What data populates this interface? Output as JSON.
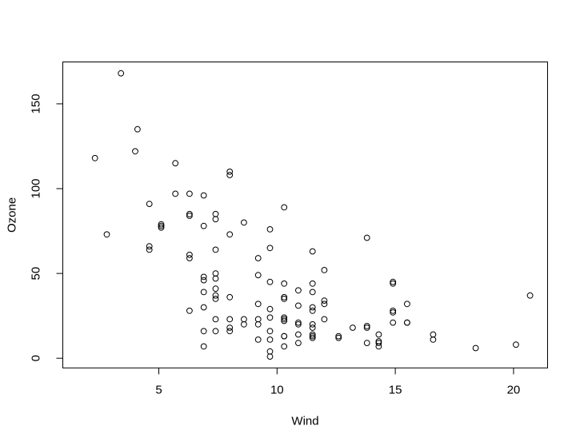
{
  "chart_data": {
    "type": "scatter",
    "title": "",
    "xlabel": "Wind",
    "ylabel": "Ozone",
    "x_ticks": [
      5,
      10,
      15,
      20
    ],
    "y_ticks": [
      0,
      50,
      100,
      150
    ],
    "xlim": [
      0.94,
      21.44
    ],
    "ylim": [
      -5.7,
      174.7
    ],
    "grid": false,
    "legend": "none",
    "marker": "open-circle",
    "marker_color": "#000000",
    "background_color": "#ffffff",
    "points": [
      [
        7.4,
        41
      ],
      [
        8,
        36
      ],
      [
        12.6,
        12
      ],
      [
        11.5,
        18
      ],
      [
        14.9,
        28
      ],
      [
        8.6,
        23
      ],
      [
        13.8,
        19
      ],
      [
        20.1,
        8
      ],
      [
        6.9,
        7
      ],
      [
        9.7,
        16
      ],
      [
        9.2,
        11
      ],
      [
        10.9,
        14
      ],
      [
        13.2,
        18
      ],
      [
        11.5,
        14
      ],
      [
        12,
        34
      ],
      [
        18.4,
        6
      ],
      [
        11.5,
        30
      ],
      [
        9.7,
        11
      ],
      [
        9.7,
        1
      ],
      [
        16.6,
        11
      ],
      [
        9.7,
        4
      ],
      [
        12,
        32
      ],
      [
        12,
        23
      ],
      [
        14.9,
        45
      ],
      [
        5.7,
        115
      ],
      [
        7.4,
        37
      ],
      [
        9.7,
        29
      ],
      [
        13.8,
        71
      ],
      [
        11.5,
        39
      ],
      [
        8,
        23
      ],
      [
        14.9,
        21
      ],
      [
        20.7,
        37
      ],
      [
        9.2,
        20
      ],
      [
        11.5,
        12
      ],
      [
        10.3,
        13
      ],
      [
        4.1,
        135
      ],
      [
        9.2,
        49
      ],
      [
        9.2,
        32
      ],
      [
        4.6,
        64
      ],
      [
        10.9,
        40
      ],
      [
        5.1,
        77
      ],
      [
        6.3,
        97
      ],
      [
        5.7,
        97
      ],
      [
        7.4,
        85
      ],
      [
        14.3,
        10
      ],
      [
        14.9,
        27
      ],
      [
        14.3,
        7
      ],
      [
        6.9,
        48
      ],
      [
        10.3,
        35
      ],
      [
        6.3,
        61
      ],
      [
        5.1,
        79
      ],
      [
        11.5,
        63
      ],
      [
        6.9,
        16
      ],
      [
        8.6,
        80
      ],
      [
        8,
        108
      ],
      [
        8.6,
        20
      ],
      [
        12,
        52
      ],
      [
        7.4,
        82
      ],
      [
        7.4,
        50
      ],
      [
        7.4,
        64
      ],
      [
        9.2,
        59
      ],
      [
        6.9,
        39
      ],
      [
        13.8,
        9
      ],
      [
        7.4,
        16
      ],
      [
        6.9,
        78
      ],
      [
        7.4,
        35
      ],
      [
        4.6,
        66
      ],
      [
        4,
        122
      ],
      [
        10.3,
        89
      ],
      [
        8,
        110
      ],
      [
        11.5,
        44
      ],
      [
        11.5,
        28
      ],
      [
        9.7,
        65
      ],
      [
        10.3,
        22
      ],
      [
        6.3,
        59
      ],
      [
        7.4,
        23
      ],
      [
        10.9,
        31
      ],
      [
        10.3,
        44
      ],
      [
        15.5,
        21
      ],
      [
        14.3,
        9
      ],
      [
        9.7,
        45
      ],
      [
        3.4,
        168
      ],
      [
        8,
        73
      ],
      [
        9.7,
        76
      ],
      [
        2.3,
        118
      ],
      [
        6.3,
        84
      ],
      [
        6.3,
        85
      ],
      [
        6.9,
        96
      ],
      [
        5.1,
        78
      ],
      [
        2.8,
        73
      ],
      [
        4.6,
        91
      ],
      [
        7.4,
        47
      ],
      [
        15.5,
        32
      ],
      [
        10.9,
        20
      ],
      [
        10.3,
        23
      ],
      [
        10.9,
        21
      ],
      [
        9.7,
        24
      ],
      [
        14.9,
        44
      ],
      [
        15.5,
        21
      ],
      [
        6.3,
        28
      ],
      [
        10.9,
        9
      ],
      [
        11.5,
        13
      ],
      [
        6.9,
        46
      ],
      [
        13.8,
        18
      ],
      [
        10.3,
        13
      ],
      [
        10.3,
        24
      ],
      [
        8,
        16
      ],
      [
        12.6,
        13
      ],
      [
        9.2,
        23
      ],
      [
        10.3,
        36
      ],
      [
        10.3,
        7
      ],
      [
        16.6,
        14
      ],
      [
        6.9,
        30
      ],
      [
        14.3,
        14
      ],
      [
        8,
        18
      ],
      [
        11.5,
        20
      ]
    ]
  }
}
